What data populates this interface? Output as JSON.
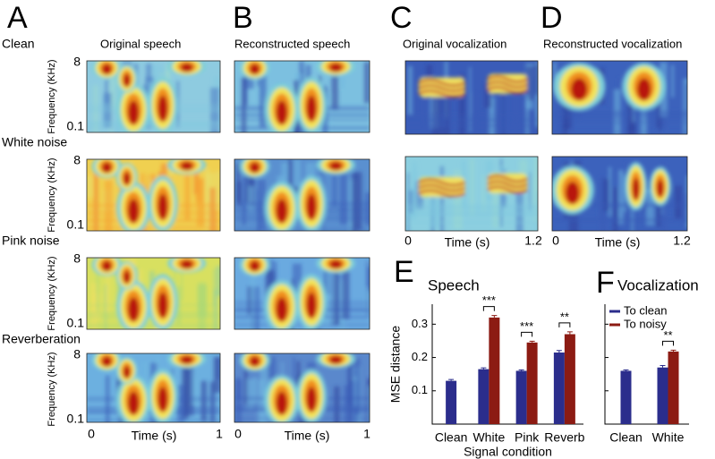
{
  "panels": {
    "letters": [
      "A",
      "B",
      "C",
      "D",
      "E",
      "F"
    ],
    "row_labels": [
      "Clean",
      "White noise",
      "Pink noise",
      "Reverberation"
    ],
    "column_titles": [
      "Original speech",
      "Reconstructed speech",
      "Original vocalization",
      "Reconstructed vocalization"
    ],
    "freq_label": "Frequency (KHz)",
    "freq_top": "8",
    "freq_bottom": "0.1",
    "speech_time": {
      "start": "0",
      "label": "Time (s)",
      "end": "1"
    },
    "vocal_time": {
      "start": "0",
      "label": "Time (s)",
      "end": "1.2"
    }
  },
  "chart_data": [
    {
      "type": "bar",
      "title": "Speech",
      "ylabel": "MSE distance",
      "xlabel": "Signal condition",
      "categories": [
        "Clean",
        "White",
        "Pink",
        "Reverb"
      ],
      "series": [
        {
          "color": "#2b2d8c",
          "values": [
            0.13,
            0.165,
            0.16,
            0.215
          ],
          "errors": [
            0.004,
            0.004,
            0.003,
            0.006
          ]
        },
        {
          "color": "#8c1b13",
          "values": [
            null,
            0.32,
            0.245,
            0.27
          ],
          "errors": [
            null,
            0.006,
            0.004,
            0.007
          ]
        }
      ],
      "significance": [
        null,
        "***",
        "***",
        "**"
      ],
      "ylim": [
        0,
        0.36
      ],
      "yticks": [
        0.1,
        0.2,
        0.3
      ],
      "show_tick_labels": true,
      "legend": false
    },
    {
      "type": "bar",
      "title": "Vocalization",
      "categories": [
        "Clean",
        "White"
      ],
      "series": [
        {
          "name": "To clean",
          "color": "#2b2d8c",
          "values": [
            0.16,
            0.17
          ],
          "errors": [
            0.003,
            0.006
          ]
        },
        {
          "name": "To noisy",
          "color": "#8c1b13",
          "values": [
            null,
            0.218
          ],
          "errors": [
            null,
            0.004
          ]
        }
      ],
      "significance": [
        null,
        "**"
      ],
      "ylim": [
        0,
        0.36
      ],
      "yticks": [
        0.1,
        0.2,
        0.3
      ],
      "show_tick_labels": false,
      "legend": "top-left"
    }
  ]
}
